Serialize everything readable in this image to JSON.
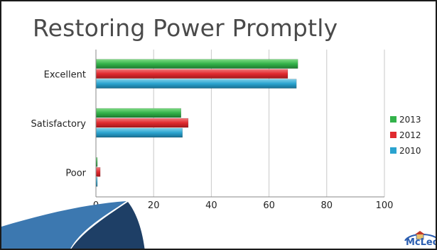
{
  "slide": {
    "title": "Restoring Power Promptly",
    "logo_text": "McLeod"
  },
  "chart_data": {
    "type": "bar",
    "orientation": "horizontal",
    "title": "Restoring Power Promptly",
    "categories": [
      "Excellent",
      "Satisfactory",
      "Poor"
    ],
    "series": [
      {
        "name": "2013",
        "color": "#33b24a",
        "values": [
          70,
          29.5,
          0.5
        ]
      },
      {
        "name": "2012",
        "color": "#e02a2f",
        "values": [
          66.5,
          32,
          1.5
        ]
      },
      {
        "name": "2010",
        "color": "#2aa3cf",
        "values": [
          69.5,
          30,
          0.5
        ]
      }
    ],
    "xlim": [
      0,
      100
    ],
    "xticks": [
      "0",
      "20",
      "40",
      "60",
      "80",
      "100"
    ],
    "grid": true,
    "legend_position": "right"
  }
}
